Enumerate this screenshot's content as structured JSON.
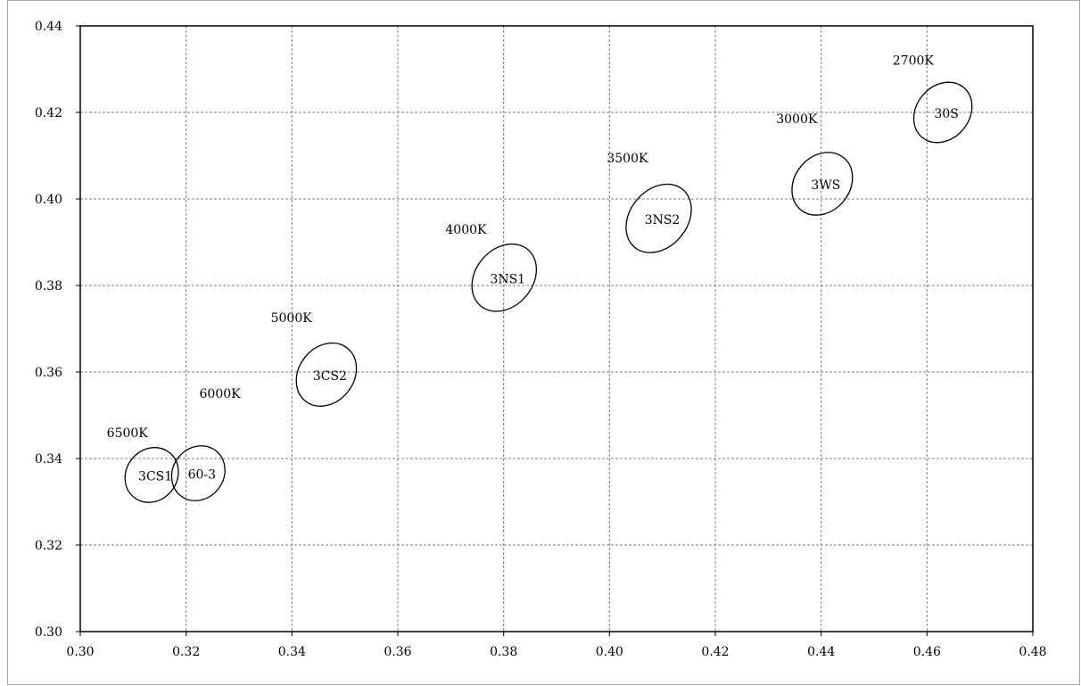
{
  "chart_data": {
    "type": "scatter",
    "title": "",
    "xlabel": "",
    "ylabel": "",
    "xlim": [
      0.3,
      0.48
    ],
    "ylim": [
      0.3,
      0.44
    ],
    "x_ticks": [
      0.3,
      0.32,
      0.34,
      0.36,
      0.38,
      0.4,
      0.42,
      0.44,
      0.46,
      0.48
    ],
    "y_ticks": [
      0.3,
      0.32,
      0.34,
      0.36,
      0.38,
      0.4,
      0.42,
      0.44
    ],
    "x_tick_labels": [
      "0.30",
      "0.32",
      "0.34",
      "0.36",
      "0.38",
      "0.40",
      "0.42",
      "0.44",
      "0.46",
      "0.48"
    ],
    "y_tick_labels": [
      "0.30",
      "0.32",
      "0.34",
      "0.36",
      "0.38",
      "0.40",
      "0.42",
      "0.44"
    ],
    "grid": true,
    "legend": "none",
    "ellipse_color": "#000000",
    "grid_color": "#808080",
    "ellipses": [
      {
        "name": "3CS1",
        "x": 0.3135,
        "y": 0.3362,
        "rx": 0.0048,
        "ry": 0.0066,
        "angle": -52
      },
      {
        "name": "60-3",
        "x": 0.3223,
        "y": 0.3366,
        "rx": 0.0048,
        "ry": 0.0066,
        "angle": -52
      },
      {
        "name": "3CS2",
        "x": 0.3465,
        "y": 0.3594,
        "rx": 0.0052,
        "ry": 0.0078,
        "angle": -52
      },
      {
        "name": "3NS1",
        "x": 0.3801,
        "y": 0.3818,
        "rx": 0.0054,
        "ry": 0.0085,
        "angle": -50
      },
      {
        "name": "3NS2",
        "x": 0.4093,
        "y": 0.3955,
        "rx": 0.0054,
        "ry": 0.0087,
        "angle": -50
      },
      {
        "name": "3WS",
        "x": 0.4402,
        "y": 0.4035,
        "rx": 0.0052,
        "ry": 0.0078,
        "angle": -50
      },
      {
        "name": "30S",
        "x": 0.463,
        "y": 0.42,
        "rx": 0.005,
        "ry": 0.0075,
        "angle": -50
      }
    ],
    "annotations": [
      {
        "text": "6500K",
        "x": 0.305,
        "y": 0.345
      },
      {
        "text": "6000K",
        "x": 0.3225,
        "y": 0.354
      },
      {
        "text": "5000K",
        "x": 0.336,
        "y": 0.3715
      },
      {
        "text": "4000K",
        "x": 0.369,
        "y": 0.392
      },
      {
        "text": "3500K",
        "x": 0.3995,
        "y": 0.4085
      },
      {
        "text": "3000K",
        "x": 0.4315,
        "y": 0.4175
      },
      {
        "text": "2700K",
        "x": 0.4535,
        "y": 0.431
      }
    ]
  }
}
